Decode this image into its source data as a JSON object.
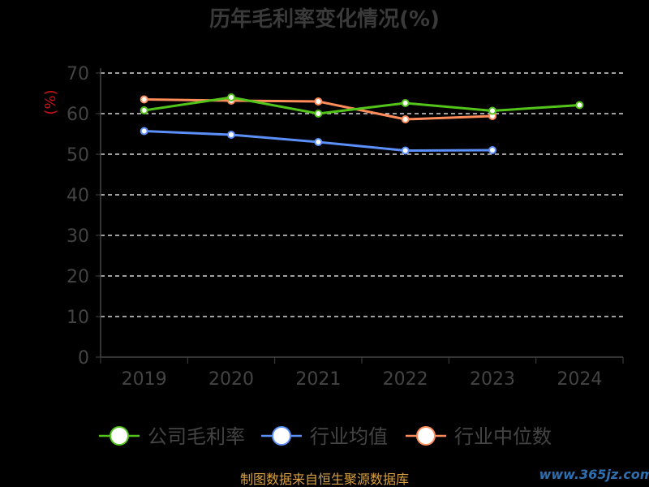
{
  "chart_data": {
    "type": "line",
    "title": "历年毛利率变化情况(%)",
    "ylabel": "(%)",
    "xlabel": "",
    "categories": [
      "2019",
      "2020",
      "2021",
      "2022",
      "2023",
      "2024"
    ],
    "ylim": [
      0,
      70
    ],
    "yticks": [
      0,
      10,
      20,
      30,
      40,
      50,
      60,
      70
    ],
    "grid": true,
    "legend_position": "bottom",
    "series": [
      {
        "name": "公司毛利率",
        "color": "#52c41a",
        "values": [
          60.8,
          64.0,
          60.0,
          62.6,
          60.7,
          62.1
        ]
      },
      {
        "name": "行业均值",
        "color": "#5b8ff9",
        "values": [
          55.7,
          54.8,
          53.0,
          50.9,
          51.0,
          null
        ]
      },
      {
        "name": "行业中位数",
        "color": "#ff8c5a",
        "values": [
          63.5,
          63.2,
          63.0,
          58.6,
          59.4,
          null
        ]
      }
    ]
  },
  "footer": {
    "source": "制图数据来自恒生聚源数据库",
    "watermark": "www.365jz.com"
  }
}
